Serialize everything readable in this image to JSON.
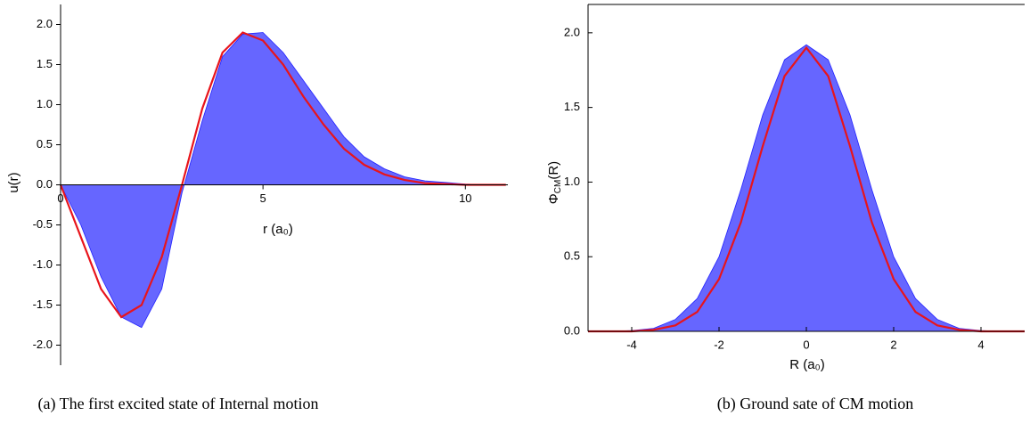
{
  "chart_data": [
    {
      "type": "line",
      "caption": "(a) The first excited state of Internal motion",
      "xlabel": "r (a₀)",
      "ylabel": "u(r)",
      "x": [
        0,
        0.5,
        1,
        1.5,
        2,
        2.5,
        3,
        3.5,
        4,
        4.5,
        5,
        5.5,
        6,
        6.5,
        7,
        7.5,
        8,
        8.5,
        9,
        9.5,
        10,
        10.5,
        11
      ],
      "series": [
        {
          "color": "#0000ff",
          "fill": true,
          "values": [
            0,
            -0.5,
            -1.15,
            -1.65,
            -1.78,
            -1.3,
            -0.1,
            0.8,
            1.6,
            1.88,
            1.9,
            1.65,
            1.3,
            0.95,
            0.6,
            0.35,
            0.2,
            0.1,
            0.05,
            0.03,
            0.01,
            0,
            0
          ]
        },
        {
          "color": "#e8141b",
          "fill": false,
          "values": [
            0,
            -0.65,
            -1.3,
            -1.65,
            -1.5,
            -0.9,
            0,
            0.95,
            1.65,
            1.9,
            1.8,
            1.5,
            1.1,
            0.75,
            0.45,
            0.25,
            0.13,
            0.06,
            0.02,
            0.01,
            0,
            0,
            0
          ]
        }
      ],
      "xlim": [
        0,
        11.05
      ],
      "ylim": [
        -2.25,
        2.25
      ],
      "xticks": [
        0,
        5,
        10
      ],
      "yticks": [
        {
          "value": -2,
          "label": "-2.0"
        },
        {
          "value": -1.5,
          "label": "-1.5"
        },
        {
          "value": -1,
          "label": "-1.0"
        },
        {
          "value": -0.5,
          "label": "-0.5"
        },
        {
          "value": 0,
          "label": "0.0"
        },
        {
          "value": 0.5,
          "label": "0.5"
        },
        {
          "value": 1,
          "label": "1.0"
        },
        {
          "value": 1.5,
          "label": "1.5"
        },
        {
          "value": 2,
          "label": "2.0"
        }
      ]
    },
    {
      "type": "line",
      "caption": "(b) Ground sate of CM motion",
      "xlabel": "R (a₀)",
      "ylabel": "Φ",
      "ylabel_sub": "CM",
      "ylabel_tail": "(R)",
      "x": [
        -5,
        -4.5,
        -4,
        -3.5,
        -3,
        -2.5,
        -2,
        -1.5,
        -1,
        -0.5,
        0,
        0.5,
        1,
        1.5,
        2,
        2.5,
        3,
        3.5,
        4,
        4.5,
        5
      ],
      "series": [
        {
          "color": "#0000ff",
          "fill": true,
          "values": [
            0,
            0,
            0.005,
            0.02,
            0.08,
            0.22,
            0.5,
            0.95,
            1.45,
            1.82,
            1.92,
            1.82,
            1.45,
            0.95,
            0.5,
            0.22,
            0.08,
            0.02,
            0.005,
            0,
            0
          ]
        },
        {
          "color": "#e8141b",
          "fill": false,
          "values": [
            0,
            0,
            0,
            0.01,
            0.04,
            0.13,
            0.35,
            0.73,
            1.24,
            1.71,
            1.9,
            1.71,
            1.24,
            0.73,
            0.35,
            0.13,
            0.04,
            0.01,
            0,
            0,
            0
          ]
        }
      ],
      "xlim": [
        -5,
        5
      ],
      "ylim": [
        0,
        2.19
      ],
      "xticks": [
        -4,
        -2,
        0,
        2,
        4
      ],
      "yticks": [
        {
          "value": 0,
          "label": "0.0"
        },
        {
          "value": 0.5,
          "label": "0.5"
        },
        {
          "value": 1,
          "label": "1.0"
        },
        {
          "value": 1.5,
          "label": "1.5"
        },
        {
          "value": 2,
          "label": "2.0"
        }
      ]
    }
  ]
}
